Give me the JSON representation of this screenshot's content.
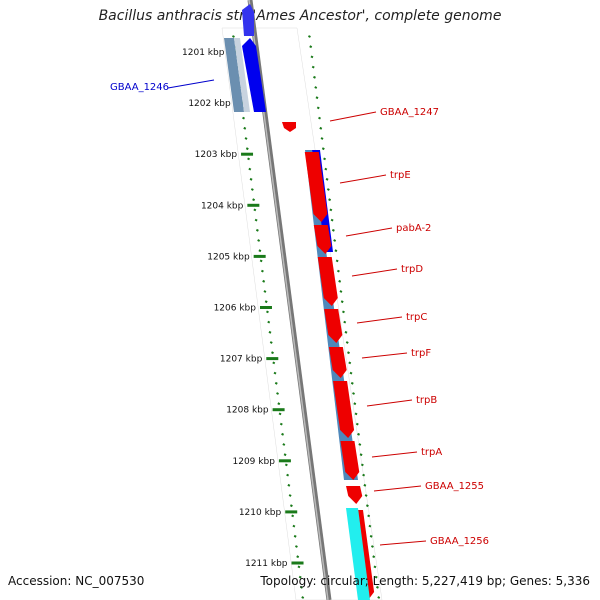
{
  "title": "Bacillus anthracis str. 'Ames Ancestor', complete genome",
  "footer": {
    "accession": "Accession: NC_007530",
    "topology": "Topology: circular; Length: 5,227,419 bp; Genes: 5,336"
  },
  "ticks": [
    "1201 kbp",
    "1202 kbp",
    "1203 kbp",
    "1204 kbp",
    "1205 kbp",
    "1206 kbp",
    "1207 kbp",
    "1208 kbp",
    "1209 kbp",
    "1210 kbp",
    "1211 kbp"
  ],
  "gene_labels": [
    {
      "text": "GBAA_1246",
      "side": "left",
      "color": "#0000cc"
    },
    {
      "text": "GBAA_1247",
      "side": "right",
      "color": "#cc0000"
    },
    {
      "text": "trpE",
      "side": "right",
      "color": "#cc0000"
    },
    {
      "text": "pabA-2",
      "side": "right",
      "color": "#cc0000"
    },
    {
      "text": "trpD",
      "side": "right",
      "color": "#cc0000"
    },
    {
      "text": "trpC",
      "side": "right",
      "color": "#cc0000"
    },
    {
      "text": "trpF",
      "side": "right",
      "color": "#cc0000"
    },
    {
      "text": "trpB",
      "side": "right",
      "color": "#cc0000"
    },
    {
      "text": "trpA",
      "side": "right",
      "color": "#cc0000"
    },
    {
      "text": "GBAA_1255",
      "side": "right",
      "color": "#cc0000"
    },
    {
      "text": "GBAA_1256",
      "side": "right",
      "color": "#cc0000"
    }
  ],
  "colors": {
    "reverse_strand_gene": "#ee0000",
    "forward_strand_gene": "#0000ee",
    "cds_feature": "#4f88bb",
    "tick_marks": "#1a7a1a",
    "backbone": "#777777",
    "label_red": "#cc0000",
    "label_blue": "#0000cc",
    "cyan_feature": "#22eeee"
  }
}
